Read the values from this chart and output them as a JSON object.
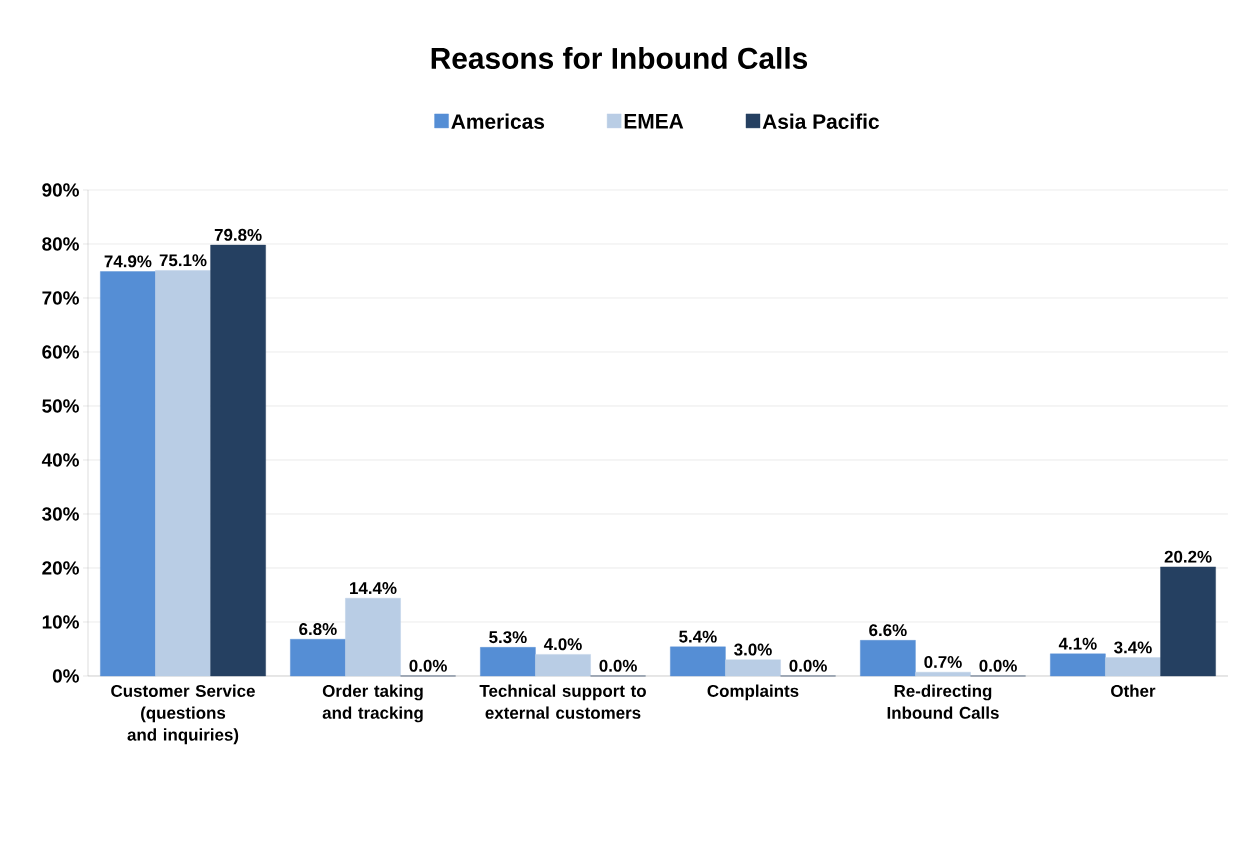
{
  "chart_data": {
    "type": "bar",
    "title": "Reasons for Inbound Calls",
    "categories": [
      "Customer Service (questions and inquiries)",
      "Order taking and tracking",
      "Technical support to external customers",
      "Complaints",
      "Re-directing Inbound Calls",
      "Other"
    ],
    "series": [
      {
        "name": "Americas",
        "color": "#558ed5",
        "values": [
          74.9,
          6.8,
          5.3,
          5.4,
          6.6,
          4.1
        ],
        "value_labels": [
          "74.9%",
          "6.8%",
          "5.3%",
          "5.4%",
          "6.6%",
          "4.1%"
        ]
      },
      {
        "name": "EMEA",
        "color": "#b9cde5",
        "values": [
          75.1,
          14.4,
          4.0,
          3.0,
          0.7,
          3.4
        ],
        "value_labels": [
          "75.1%",
          "14.4%",
          "4.0%",
          "3.0%",
          "0.7%",
          "3.4%"
        ]
      },
      {
        "name": "Asia Pacific",
        "color": "#254061",
        "values": [
          79.8,
          0.0,
          0.0,
          0.0,
          0.0,
          20.2
        ],
        "value_labels": [
          "79.8%",
          "0.0%",
          "0.0%",
          "0.0%",
          "0.0%",
          "20.2%"
        ]
      }
    ],
    "ylim": [
      0,
      90
    ],
    "yticks": [
      {
        "value": 0,
        "label": "0%"
      },
      {
        "value": 10,
        "label": "10%"
      },
      {
        "value": 20,
        "label": "20%"
      },
      {
        "value": 30,
        "label": "30%"
      },
      {
        "value": 40,
        "label": "40%"
      },
      {
        "value": 50,
        "label": "50%"
      },
      {
        "value": 60,
        "label": "60%"
      },
      {
        "value": 70,
        "label": "70%"
      },
      {
        "value": 80,
        "label": "80%"
      },
      {
        "value": 90,
        "label": "90%"
      }
    ],
    "grid": "y",
    "legend": "top"
  }
}
